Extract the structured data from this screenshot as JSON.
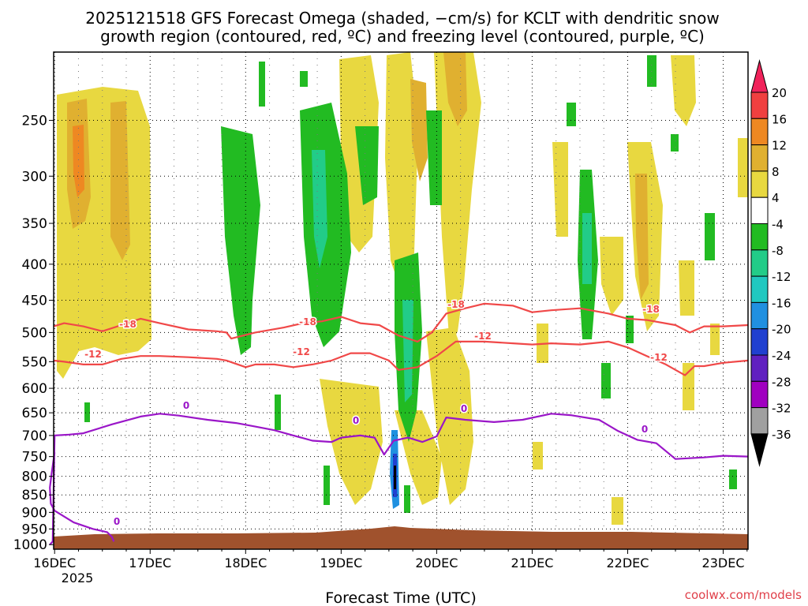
{
  "chart_data": {
    "type": "heatmap",
    "title_line1": "2025121518 GFS Forecast Omega (shaded, −cm/s) for KCLT with dendritic snow",
    "title_line2": "growth region (contoured, red, ºC) and freezing level (contoured, purple, ºC)",
    "xlabel": "Forecast Time (UTC)",
    "credit": "coolwx.com/models",
    "x_range_days": [
      15.99,
      23.26
    ],
    "x_ticks": [
      {
        "day": 16,
        "label": "16DEC"
      },
      {
        "day": 17,
        "label": "17DEC"
      },
      {
        "day": 18,
        "label": "18DEC"
      },
      {
        "day": 19,
        "label": "19DEC"
      },
      {
        "day": 20,
        "label": "20DEC"
      },
      {
        "day": 21,
        "label": "21DEC"
      },
      {
        "day": 22,
        "label": "22DEC"
      },
      {
        "day": 23,
        "label": "23DEC"
      }
    ],
    "x_year_label": "2025",
    "y_range_hpa": [
      1015,
      200
    ],
    "y_ticks": [
      250,
      300,
      350,
      400,
      450,
      500,
      550,
      600,
      650,
      700,
      750,
      800,
      850,
      900,
      950,
      1000
    ],
    "grid": true,
    "colorbar": {
      "labels": [
        "20",
        "16",
        "12",
        "8",
        "4",
        "-4",
        "-8",
        "-12",
        "-16",
        "-20",
        "-24",
        "-28",
        "-32",
        "-36"
      ],
      "colors": [
        "#f0225a",
        "#f04040",
        "#ee8822",
        "#e0b030",
        "#e8d840",
        "#ffffff",
        "#22bb22",
        "#22cc88",
        "#20c8c0",
        "#2090e0",
        "#2040d0",
        "#6020c0",
        "#a000c0",
        "#a0a0a0",
        "#000000"
      ]
    },
    "contour_labels": {
      "dgz_minus18": "-18",
      "dgz_minus12": "-12",
      "freezing": "0"
    },
    "series": [
      {
        "name": "-18C isotherm (hPa)",
        "color": "#f04848",
        "x": [
          15.99,
          16.1,
          16.3,
          16.5,
          16.7,
          16.9,
          17.1,
          17.4,
          17.7,
          17.8,
          17.85,
          18.1,
          18.4,
          18.6,
          18.8,
          19.0,
          19.2,
          19.4,
          19.6,
          19.8,
          19.95,
          20.1,
          20.3,
          20.5,
          20.8,
          21.0,
          21.2,
          21.5,
          21.8,
          22.0,
          22.2,
          22.5,
          22.65,
          22.8,
          23.0,
          23.26
        ],
        "y": [
          490,
          485,
          490,
          498,
          488,
          478,
          485,
          495,
          498,
          500,
          510,
          500,
          492,
          485,
          482,
          475,
          485,
          488,
          505,
          515,
          500,
          470,
          462,
          455,
          458,
          468,
          465,
          462,
          470,
          478,
          480,
          488,
          500,
          490,
          490,
          488
        ]
      },
      {
        "name": "-12C isotherm (hPa)",
        "color": "#f04848",
        "x": [
          15.99,
          16.1,
          16.3,
          16.5,
          16.7,
          16.9,
          17.1,
          17.4,
          17.7,
          17.8,
          18.0,
          18.1,
          18.3,
          18.5,
          18.7,
          18.9,
          19.1,
          19.3,
          19.5,
          19.6,
          19.8,
          20.0,
          20.2,
          20.5,
          20.8,
          21.0,
          21.2,
          21.5,
          21.8,
          22.0,
          22.2,
          22.4,
          22.6,
          22.7,
          22.8,
          23.0,
          23.26
        ],
        "y": [
          548,
          550,
          555,
          555,
          545,
          540,
          540,
          542,
          545,
          548,
          560,
          555,
          555,
          560,
          555,
          548,
          535,
          535,
          548,
          565,
          560,
          540,
          515,
          515,
          518,
          520,
          518,
          520,
          515,
          525,
          540,
          555,
          575,
          558,
          558,
          552,
          548
        ]
      },
      {
        "name": "0C isotherm (hPa)",
        "color": "#9a16c8",
        "x": [
          15.95,
          15.98,
          16.0,
          16.15,
          16.3,
          16.6,
          16.9,
          17.1,
          17.3,
          17.6,
          17.9,
          18.1,
          18.3,
          18.5,
          18.7,
          18.9,
          19.0,
          19.2,
          19.35,
          19.45,
          19.55,
          19.7,
          19.85,
          20.0,
          20.1,
          20.3,
          20.6,
          20.9,
          21.2,
          21.4,
          21.7,
          21.9,
          22.1,
          22.3,
          22.5,
          22.8,
          23.0,
          23.26
        ],
        "y": [
          1000,
          990,
          700,
          698,
          695,
          675,
          658,
          652,
          656,
          665,
          672,
          680,
          688,
          700,
          712,
          715,
          705,
          700,
          705,
          745,
          712,
          705,
          715,
          702,
          660,
          665,
          670,
          665,
          652,
          655,
          665,
          690,
          710,
          718,
          756,
          752,
          748,
          750
        ]
      },
      {
        "name": "0C isotherm lower loop (hPa)",
        "color": "#9a16c8",
        "x": [
          16.0,
          15.97,
          15.95,
          15.96,
          16.0,
          16.2,
          16.4,
          16.55,
          16.6,
          16.62
        ],
        "y": [
          740,
          790,
          830,
          875,
          895,
          930,
          950,
          960,
          975,
          990
        ]
      }
    ]
  }
}
